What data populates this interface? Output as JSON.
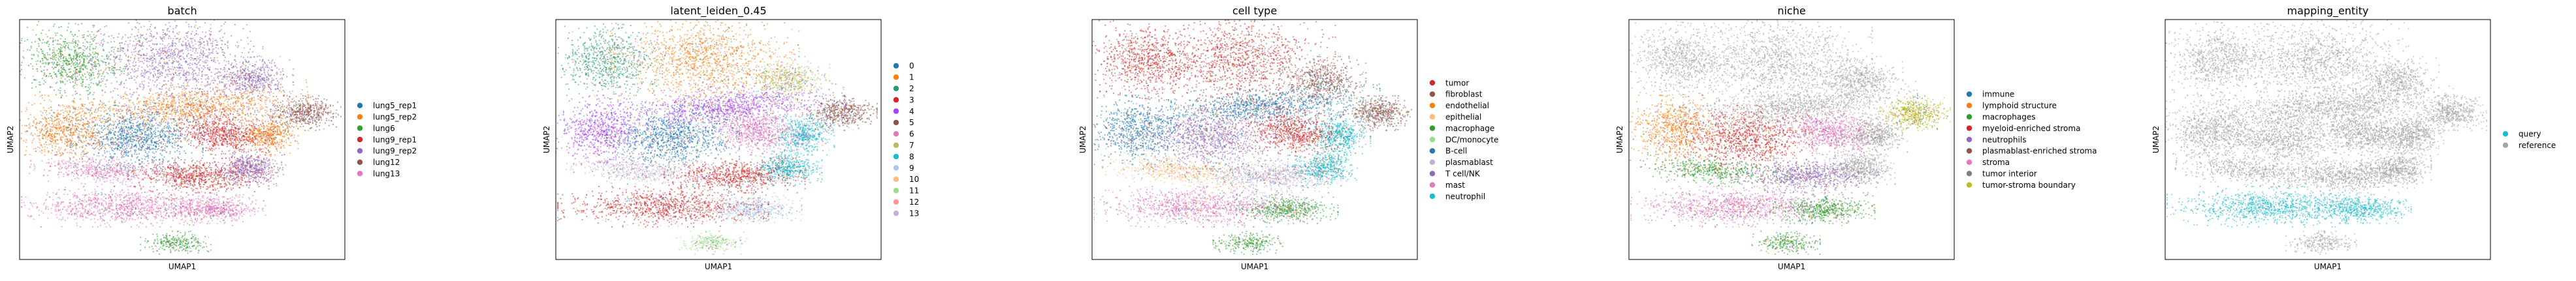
{
  "chart_data": [
    {
      "type": "scatter",
      "title": "batch",
      "xlabel": "UMAP1",
      "ylabel": "UMAP2",
      "legend_position": "right",
      "grid": false,
      "series": [
        {
          "name": "lung5_rep1",
          "color": "#1f77b4"
        },
        {
          "name": "lung5_rep2",
          "color": "#ff7f0e"
        },
        {
          "name": "lung6",
          "color": "#2ca02c"
        },
        {
          "name": "lung9_rep1",
          "color": "#d62728"
        },
        {
          "name": "lung9_rep2",
          "color": "#9467bd"
        },
        {
          "name": "lung12",
          "color": "#8c564b"
        },
        {
          "name": "lung13",
          "color": "#e377c2"
        }
      ]
    },
    {
      "type": "scatter",
      "title": "latent_leiden_0.45",
      "xlabel": "UMAP1",
      "ylabel": "UMAP2",
      "legend_position": "right",
      "grid": false,
      "series": [
        {
          "name": "0",
          "color": "#1f77b4"
        },
        {
          "name": "1",
          "color": "#ff7f0e"
        },
        {
          "name": "2",
          "color": "#279e68"
        },
        {
          "name": "3",
          "color": "#d62728"
        },
        {
          "name": "4",
          "color": "#aa40fc"
        },
        {
          "name": "5",
          "color": "#8c564b"
        },
        {
          "name": "6",
          "color": "#e377c2"
        },
        {
          "name": "7",
          "color": "#b5bd61"
        },
        {
          "name": "8",
          "color": "#17becf"
        },
        {
          "name": "9",
          "color": "#aec7e8"
        },
        {
          "name": "10",
          "color": "#ffbb78"
        },
        {
          "name": "11",
          "color": "#98df8a"
        },
        {
          "name": "12",
          "color": "#ff9896"
        },
        {
          "name": "13",
          "color": "#c5b0d5"
        }
      ]
    },
    {
      "type": "scatter",
      "title": "cell type",
      "xlabel": "UMAP1",
      "ylabel": "UMAP2",
      "legend_position": "right",
      "grid": false,
      "series": [
        {
          "name": "tumor",
          "color": "#d62728"
        },
        {
          "name": "fibroblast",
          "color": "#8c564b"
        },
        {
          "name": "endothelial",
          "color": "#ff7f0e"
        },
        {
          "name": "epithelial",
          "color": "#ffbb78"
        },
        {
          "name": "macrophage",
          "color": "#2ca02c"
        },
        {
          "name": "DC/monocyte",
          "color": "#98df8a"
        },
        {
          "name": "B-cell",
          "color": "#1f77b4"
        },
        {
          "name": "plasmablast",
          "color": "#c5b0d5"
        },
        {
          "name": "T cell/NK",
          "color": "#9467bd"
        },
        {
          "name": "mast",
          "color": "#e377c2"
        },
        {
          "name": "neutrophil",
          "color": "#17becf"
        }
      ]
    },
    {
      "type": "scatter",
      "title": "niche",
      "xlabel": "UMAP1",
      "ylabel": "UMAP2",
      "legend_position": "right",
      "grid": false,
      "series": [
        {
          "name": "immune",
          "color": "#1f77b4"
        },
        {
          "name": "lymphoid structure",
          "color": "#ff7f0e"
        },
        {
          "name": "macrophages",
          "color": "#2ca02c"
        },
        {
          "name": "myeloid-enriched stroma",
          "color": "#d62728"
        },
        {
          "name": "neutrophils",
          "color": "#9467bd"
        },
        {
          "name": "plasmablast-enriched stroma",
          "color": "#8c564b"
        },
        {
          "name": "stroma",
          "color": "#e377c2"
        },
        {
          "name": "tumor interior",
          "color": "#7f7f7f"
        },
        {
          "name": "tumor-stroma boundary",
          "color": "#bcbd22"
        }
      ]
    },
    {
      "type": "scatter",
      "title": "mapping_entity",
      "xlabel": "UMAP1",
      "ylabel": "UMAP2",
      "legend_position": "right",
      "grid": false,
      "series": [
        {
          "name": "query",
          "color": "#17becf"
        },
        {
          "name": "reference",
          "color": "#a6a6a6"
        }
      ]
    }
  ]
}
